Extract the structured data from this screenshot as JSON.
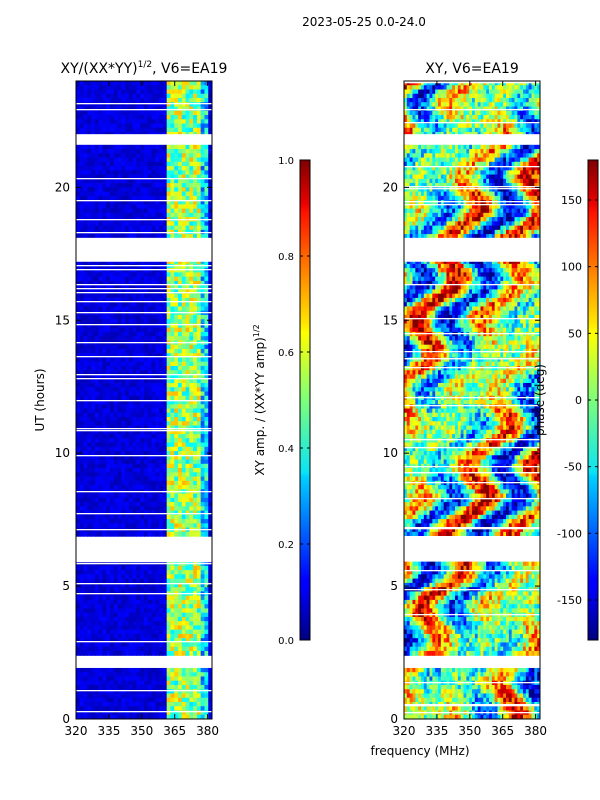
{
  "suptitle": "2023-05-25 0.0-24.0",
  "shared": {
    "xlabel": "frequency (MHz)",
    "ylabel": "UT (hours)"
  },
  "chart_data": [
    {
      "type": "heatmap",
      "title_main": "XY/(XX*YY)",
      "title_sup": "1/2",
      "title_tail": ", V6=EA19",
      "x_ticks": [
        "320",
        "335",
        "350",
        "365",
        "380"
      ],
      "x_tick_values": [
        320,
        335,
        350,
        365,
        380
      ],
      "xlim": [
        320,
        382
      ],
      "y_ticks": [
        "0",
        "5",
        "10",
        "15",
        "20"
      ],
      "y_tick_values": [
        0,
        5,
        10,
        15,
        20
      ],
      "ylim": [
        0,
        24
      ],
      "colorbar": {
        "label_main": "XY amp. / (XX*YY amp)",
        "label_sup": "1/2",
        "range": [
          0.0,
          1.0
        ],
        "ticks": [
          "0.0",
          "0.2",
          "0.4",
          "0.6",
          "0.8",
          "1.0"
        ],
        "tick_values": [
          0.0,
          0.2,
          0.4,
          0.6,
          0.8,
          1.0
        ],
        "colormap": "jet"
      },
      "data_gaps_hours": [
        [
          17.2,
          18.1
        ],
        [
          21.6,
          22.0
        ]
      ]
    },
    {
      "type": "heatmap",
      "title_main": "XY, V6=EA19",
      "x_ticks": [
        "320",
        "335",
        "350",
        "365",
        "380"
      ],
      "x_tick_values": [
        320,
        335,
        350,
        365,
        380
      ],
      "xlim": [
        320,
        382
      ],
      "y_ticks": [
        "0",
        "5",
        "10",
        "15",
        "20"
      ],
      "y_tick_values": [
        0,
        5,
        10,
        15,
        20
      ],
      "ylim": [
        0,
        24
      ],
      "colorbar": {
        "label_main": "phase (deg)",
        "range": [
          -180,
          180
        ],
        "ticks": [
          "-150",
          "-100",
          "-50",
          "0",
          "50",
          "100",
          "150"
        ],
        "tick_values": [
          -150,
          -100,
          -50,
          0,
          50,
          100,
          150
        ],
        "colormap": "jet"
      },
      "data_gaps_hours": [
        [
          17.2,
          18.1
        ],
        [
          21.6,
          22.0
        ]
      ]
    }
  ]
}
